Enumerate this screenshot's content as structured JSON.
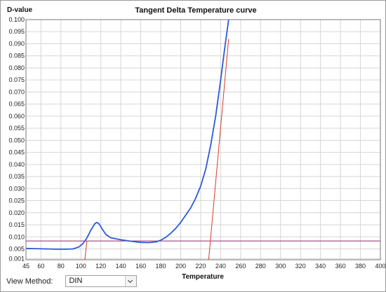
{
  "chart_data": {
    "type": "line",
    "title": "Tangent Delta Temperature curve",
    "ylabel": "D-value",
    "xlabel": "Temperature",
    "xlim": [
      45,
      400
    ],
    "ylim": [
      0.0005,
      0.1
    ],
    "x_ticks": [
      45,
      60,
      80,
      100,
      120,
      140,
      160,
      180,
      200,
      220,
      240,
      260,
      280,
      300,
      320,
      340,
      360,
      380,
      400
    ],
    "y_ticks": [
      0.001,
      0.005,
      0.01,
      0.015,
      0.02,
      0.025,
      0.03,
      0.035,
      0.04,
      0.045,
      0.05,
      0.055,
      0.06,
      0.065,
      0.07,
      0.075,
      0.08,
      0.085,
      0.09,
      0.095,
      0.1
    ],
    "y_tick_labels": [
      "0.001",
      "0.005",
      "0.010",
      "0.015",
      "0.020",
      "0.025",
      "0.030",
      "0.035",
      "0.040",
      "0.045",
      "0.050",
      "0.055",
      "0.060",
      "0.065",
      "0.070",
      "0.075",
      "0.080",
      "0.085",
      "0.090",
      "0.095",
      "0.100"
    ],
    "grid": true,
    "series": [
      {
        "x": [
          45,
          55,
          65,
          75,
          85,
          92,
          98,
          102,
          106,
          110,
          114,
          116,
          118,
          121,
          125,
          130,
          140,
          150,
          160,
          168,
          175,
          180,
          185,
          190,
          195,
          200,
          205,
          210,
          215,
          220,
          225,
          230,
          235,
          240,
          244,
          248
        ],
        "y": [
          0.0052,
          0.0051,
          0.005,
          0.0049,
          0.0049,
          0.005,
          0.0058,
          0.0072,
          0.0095,
          0.0128,
          0.0155,
          0.016,
          0.0155,
          0.0135,
          0.011,
          0.0096,
          0.0088,
          0.0082,
          0.0077,
          0.0076,
          0.0079,
          0.0086,
          0.0098,
          0.0115,
          0.0135,
          0.016,
          0.019,
          0.022,
          0.026,
          0.031,
          0.038,
          0.048,
          0.06,
          0.075,
          0.088,
          0.1
        ],
        "color": "#2a5bd7"
      }
    ],
    "reference_lines": [
      {
        "orientation": "horizontal",
        "y": 0.0083,
        "color": "#8a2a6e"
      },
      {
        "orientation": "onset-tangent",
        "x": [
          104,
          106
        ],
        "y": [
          0.0005,
          0.0083
        ],
        "color": "#d83a2a"
      },
      {
        "orientation": "onset-tangent",
        "x": [
          228,
          248
        ],
        "y": [
          0.0005,
          0.092
        ],
        "color": "#d83a2a"
      }
    ],
    "grid_color": "#d6d6d6"
  },
  "controls": {
    "view_method_label": "View Method:",
    "view_method_value": "DIN"
  }
}
